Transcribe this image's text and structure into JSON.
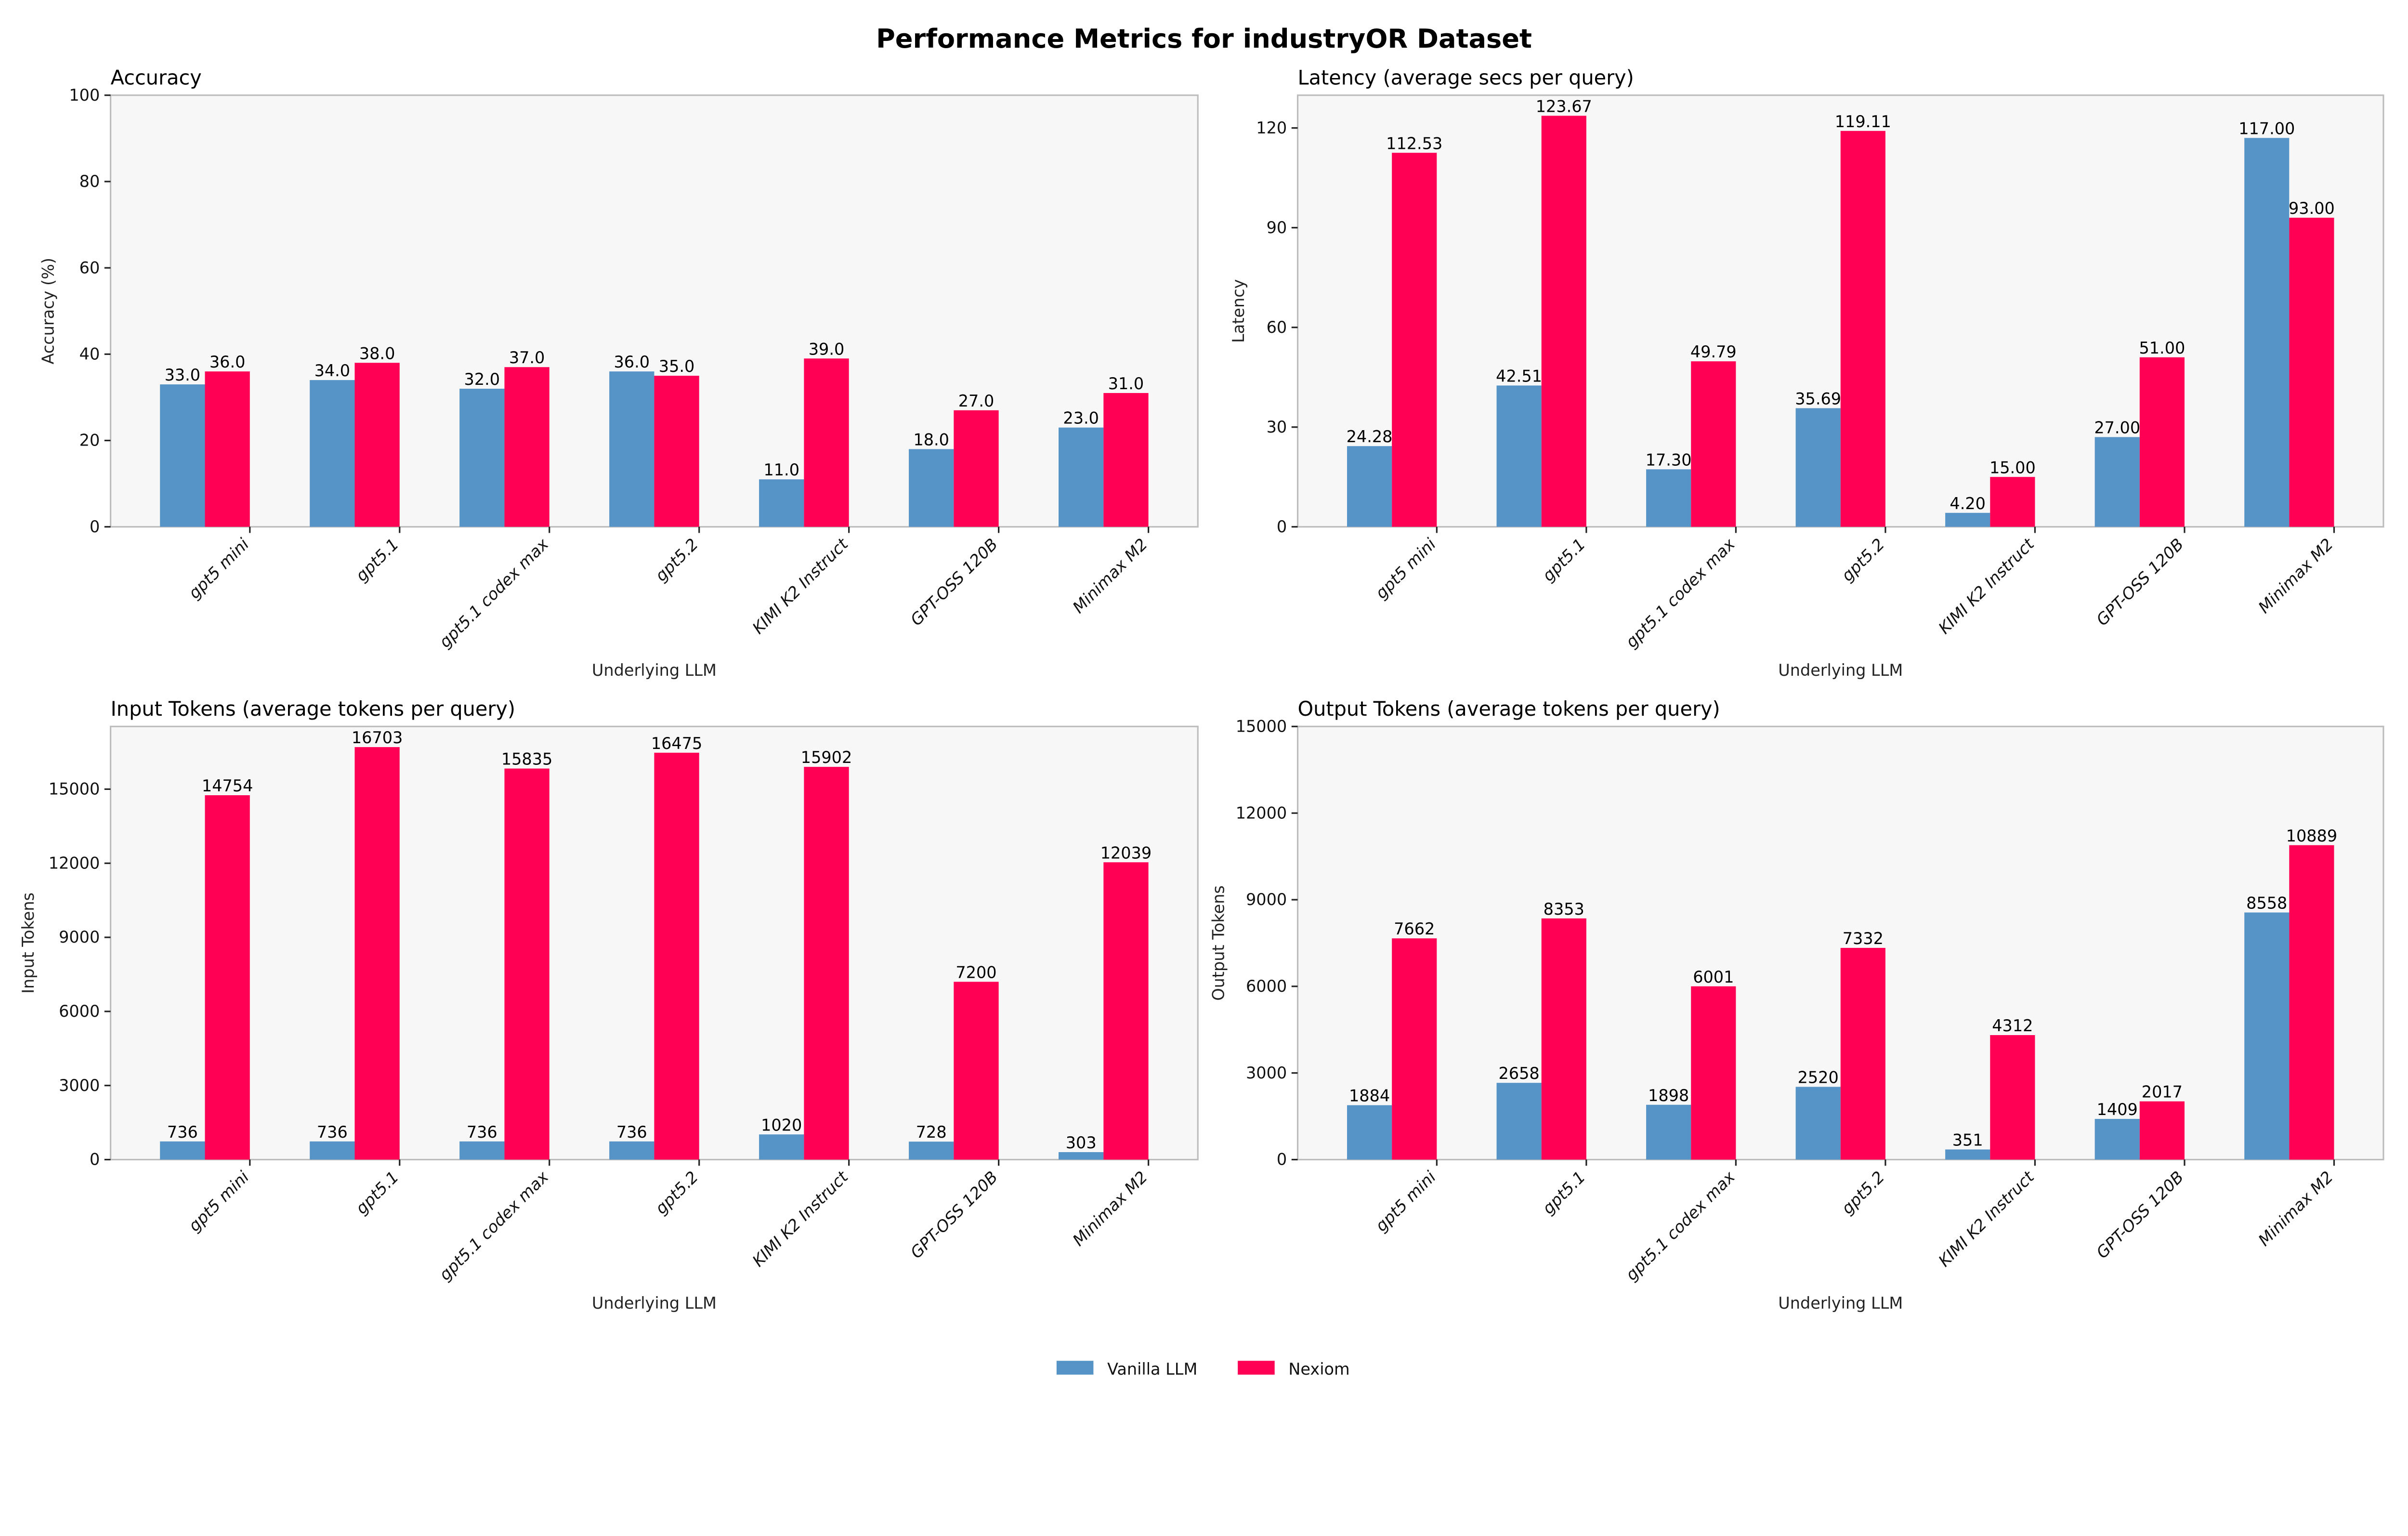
{
  "title": "Performance Metrics for industryOR Dataset",
  "legend": {
    "placement": "bottom-center",
    "items": [
      {
        "name": "Vanilla LLM",
        "color": "#5694c8"
      },
      {
        "name": "Nexiom",
        "color": "#ff0055"
      }
    ]
  },
  "chart_data": [
    {
      "type": "bar",
      "title": "Accuracy",
      "xlabel": "Underlying LLM",
      "ylabel": "Accuracy (%)",
      "ylim": [
        0,
        100
      ],
      "yticks": [
        0,
        20,
        40,
        60,
        80,
        100
      ],
      "decimals": 1,
      "categories": [
        "gpt5 mini",
        "gpt5.1",
        "gpt5.1 codex max",
        "gpt5.2",
        "KIMI K2 Instruct",
        "GPT-OSS 120B",
        "Minimax M2"
      ],
      "series": [
        {
          "name": "Vanilla LLM",
          "values": [
            33.0,
            34.0,
            32.0,
            36.0,
            11.0,
            18.0,
            23.0
          ]
        },
        {
          "name": "Nexiom",
          "values": [
            36.0,
            38.0,
            37.0,
            35.0,
            39.0,
            27.0,
            31.0
          ]
        }
      ]
    },
    {
      "type": "bar",
      "title": "Latency (average secs per query)",
      "xlabel": "Underlying LLM",
      "ylabel": "Latency",
      "ylim": [
        0,
        129.85
      ],
      "yticks": [
        0,
        30,
        60,
        90,
        120
      ],
      "decimals": 2,
      "categories": [
        "gpt5 mini",
        "gpt5.1",
        "gpt5.1 codex max",
        "gpt5.2",
        "KIMI K2 Instruct",
        "GPT-OSS 120B",
        "Minimax M2"
      ],
      "series": [
        {
          "name": "Vanilla LLM",
          "values": [
            24.28,
            42.51,
            17.3,
            35.69,
            4.2,
            27.0,
            117.0
          ]
        },
        {
          "name": "Nexiom",
          "values": [
            112.53,
            123.67,
            49.79,
            119.11,
            15.0,
            51.0,
            93.0
          ]
        }
      ]
    },
    {
      "type": "bar",
      "title": "Input Tokens (average tokens per query)",
      "xlabel": "Underlying LLM",
      "ylabel": "Input Tokens",
      "ylim": [
        0,
        17538
      ],
      "yticks": [
        0,
        3000,
        6000,
        9000,
        12000,
        15000
      ],
      "decimals": 0,
      "categories": [
        "gpt5 mini",
        "gpt5.1",
        "gpt5.1 codex max",
        "gpt5.2",
        "KIMI K2 Instruct",
        "GPT-OSS 120B",
        "Minimax M2"
      ],
      "series": [
        {
          "name": "Vanilla LLM",
          "values": [
            736,
            736,
            736,
            736,
            1020,
            728,
            303
          ]
        },
        {
          "name": "Nexiom",
          "values": [
            14754,
            16703,
            15835,
            16475,
            15902,
            7200,
            12039
          ]
        }
      ]
    },
    {
      "type": "bar",
      "title": "Output Tokens (average tokens per query)",
      "xlabel": "Underlying LLM",
      "ylabel": "Output Tokens",
      "ylim": [
        0,
        15000
      ],
      "yticks": [
        0,
        3000,
        6000,
        9000,
        12000,
        15000
      ],
      "decimals": 0,
      "categories": [
        "gpt5 mini",
        "gpt5.1",
        "gpt5.1 codex max",
        "gpt5.2",
        "KIMI K2 Instruct",
        "GPT-OSS 120B",
        "Minimax M2"
      ],
      "series": [
        {
          "name": "Vanilla LLM",
          "values": [
            1884,
            2658,
            1898,
            2520,
            351,
            1409,
            8558
          ]
        },
        {
          "name": "Nexiom",
          "values": [
            7662,
            8353,
            6001,
            7332,
            4312,
            2017,
            10889
          ]
        }
      ]
    }
  ]
}
